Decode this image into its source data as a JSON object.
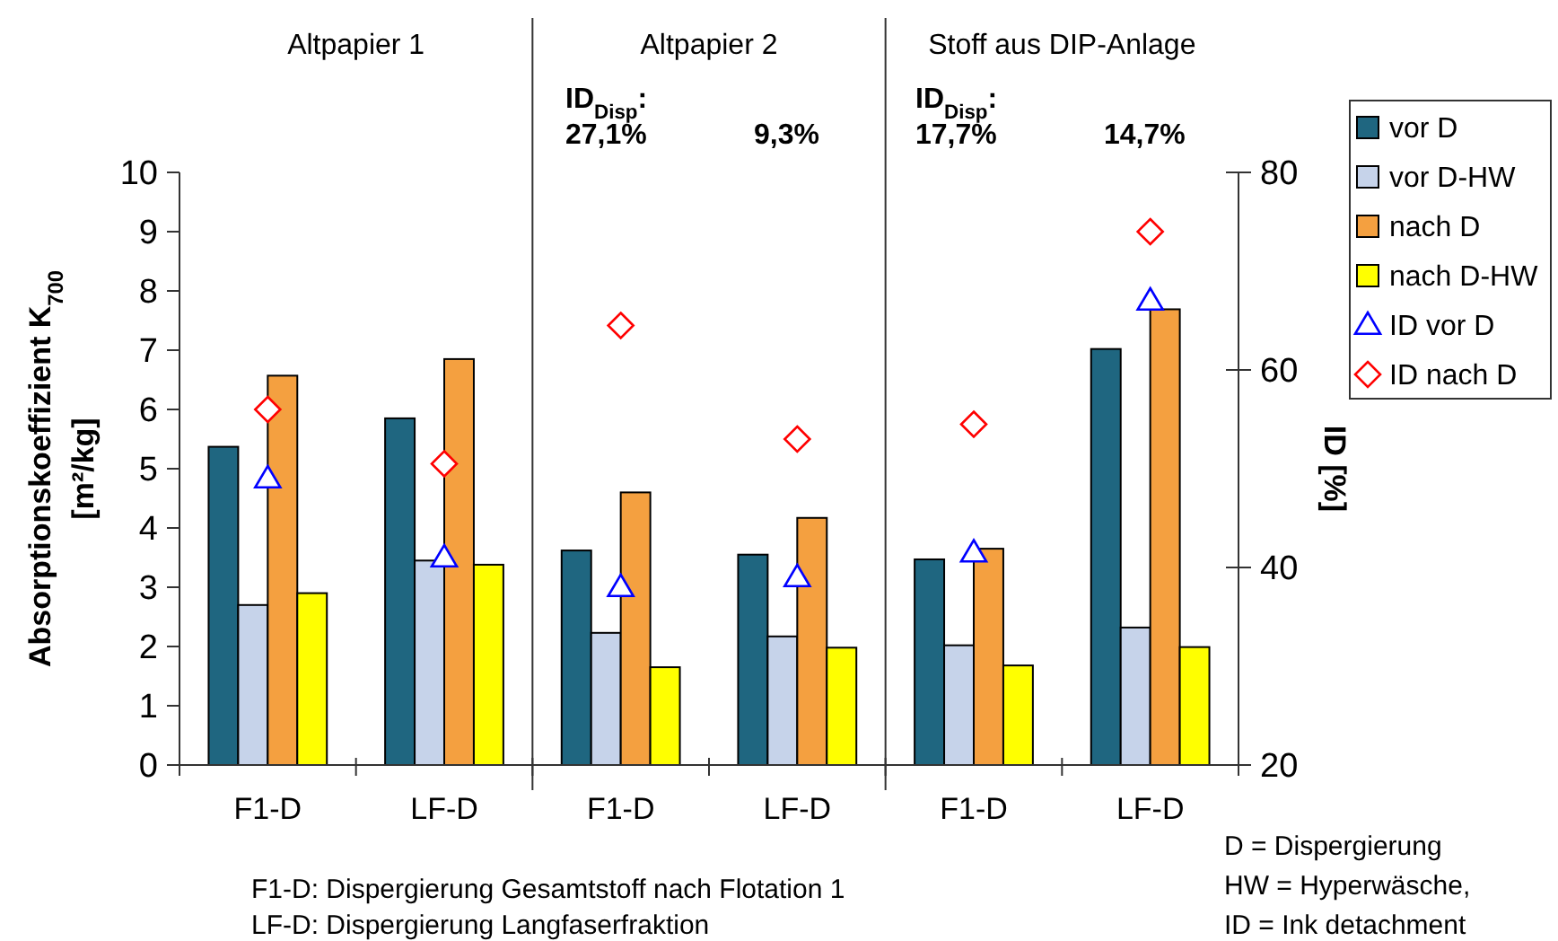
{
  "chart_data": {
    "type": "bar",
    "ylabel": "Absorptionskoeffizient K$_{700}$\n[m²/kg]",
    "y2label": "ID [%]",
    "categories": [
      "F1-D",
      "LF-D",
      "F1-D",
      "LF-D",
      "F1-D",
      "LF-D"
    ],
    "series": [
      {
        "name": "vor D",
        "color": "#1f6680",
        "values": [
          5.37,
          5.85,
          3.62,
          3.55,
          3.47,
          7.02
        ]
      },
      {
        "name": "vor D-HW",
        "color": "#c6d3ea",
        "values": [
          2.7,
          3.45,
          2.23,
          2.17,
          2.02,
          2.32
        ]
      },
      {
        "name": "nach D",
        "color": "#f4a040",
        "values": [
          6.57,
          6.85,
          4.6,
          4.17,
          3.65,
          7.69
        ]
      },
      {
        "name": "nach D-HW",
        "color": "#ffff00",
        "values": [
          2.9,
          3.38,
          1.65,
          1.98,
          1.68,
          1.99
        ]
      },
      {
        "name": "ID vor D",
        "type": "scatter",
        "axis": "y2",
        "marker": "triangle",
        "color": "#0000ff",
        "values": [
          49,
          41,
          38,
          39,
          41.5,
          67
        ]
      },
      {
        "name": "ID nach D",
        "type": "scatter",
        "axis": "y2",
        "marker": "diamond",
        "color": "#ff0000",
        "values": [
          56,
          50.5,
          64.5,
          53,
          54.5,
          74
        ]
      }
    ],
    "ylim": [
      0,
      10
    ],
    "yticks": [
      0,
      1,
      2,
      3,
      4,
      5,
      6,
      7,
      8,
      9,
      10
    ],
    "y2lim": [
      20,
      80
    ],
    "y2ticks": [
      20,
      40,
      60,
      80
    ],
    "grid": false,
    "legend": "top right",
    "annotations": [
      "Altpapier 1",
      "Altpapier 2",
      "Stoff aus DIP-Anlage",
      "ID$_{Disp}$:",
      "27,1%",
      "9,3%",
      "ID$_{Disp}$:",
      "17,7%",
      "14,7%",
      "F1-D: Dispergierung Gesamtstoff nach Flotation 1",
      "LF-D: Dispergierung Langfaserfraktion",
      "D = Dispergierung",
      "HW = Hyperwäsche,",
      "ID = Ink detachment"
    ]
  }
}
